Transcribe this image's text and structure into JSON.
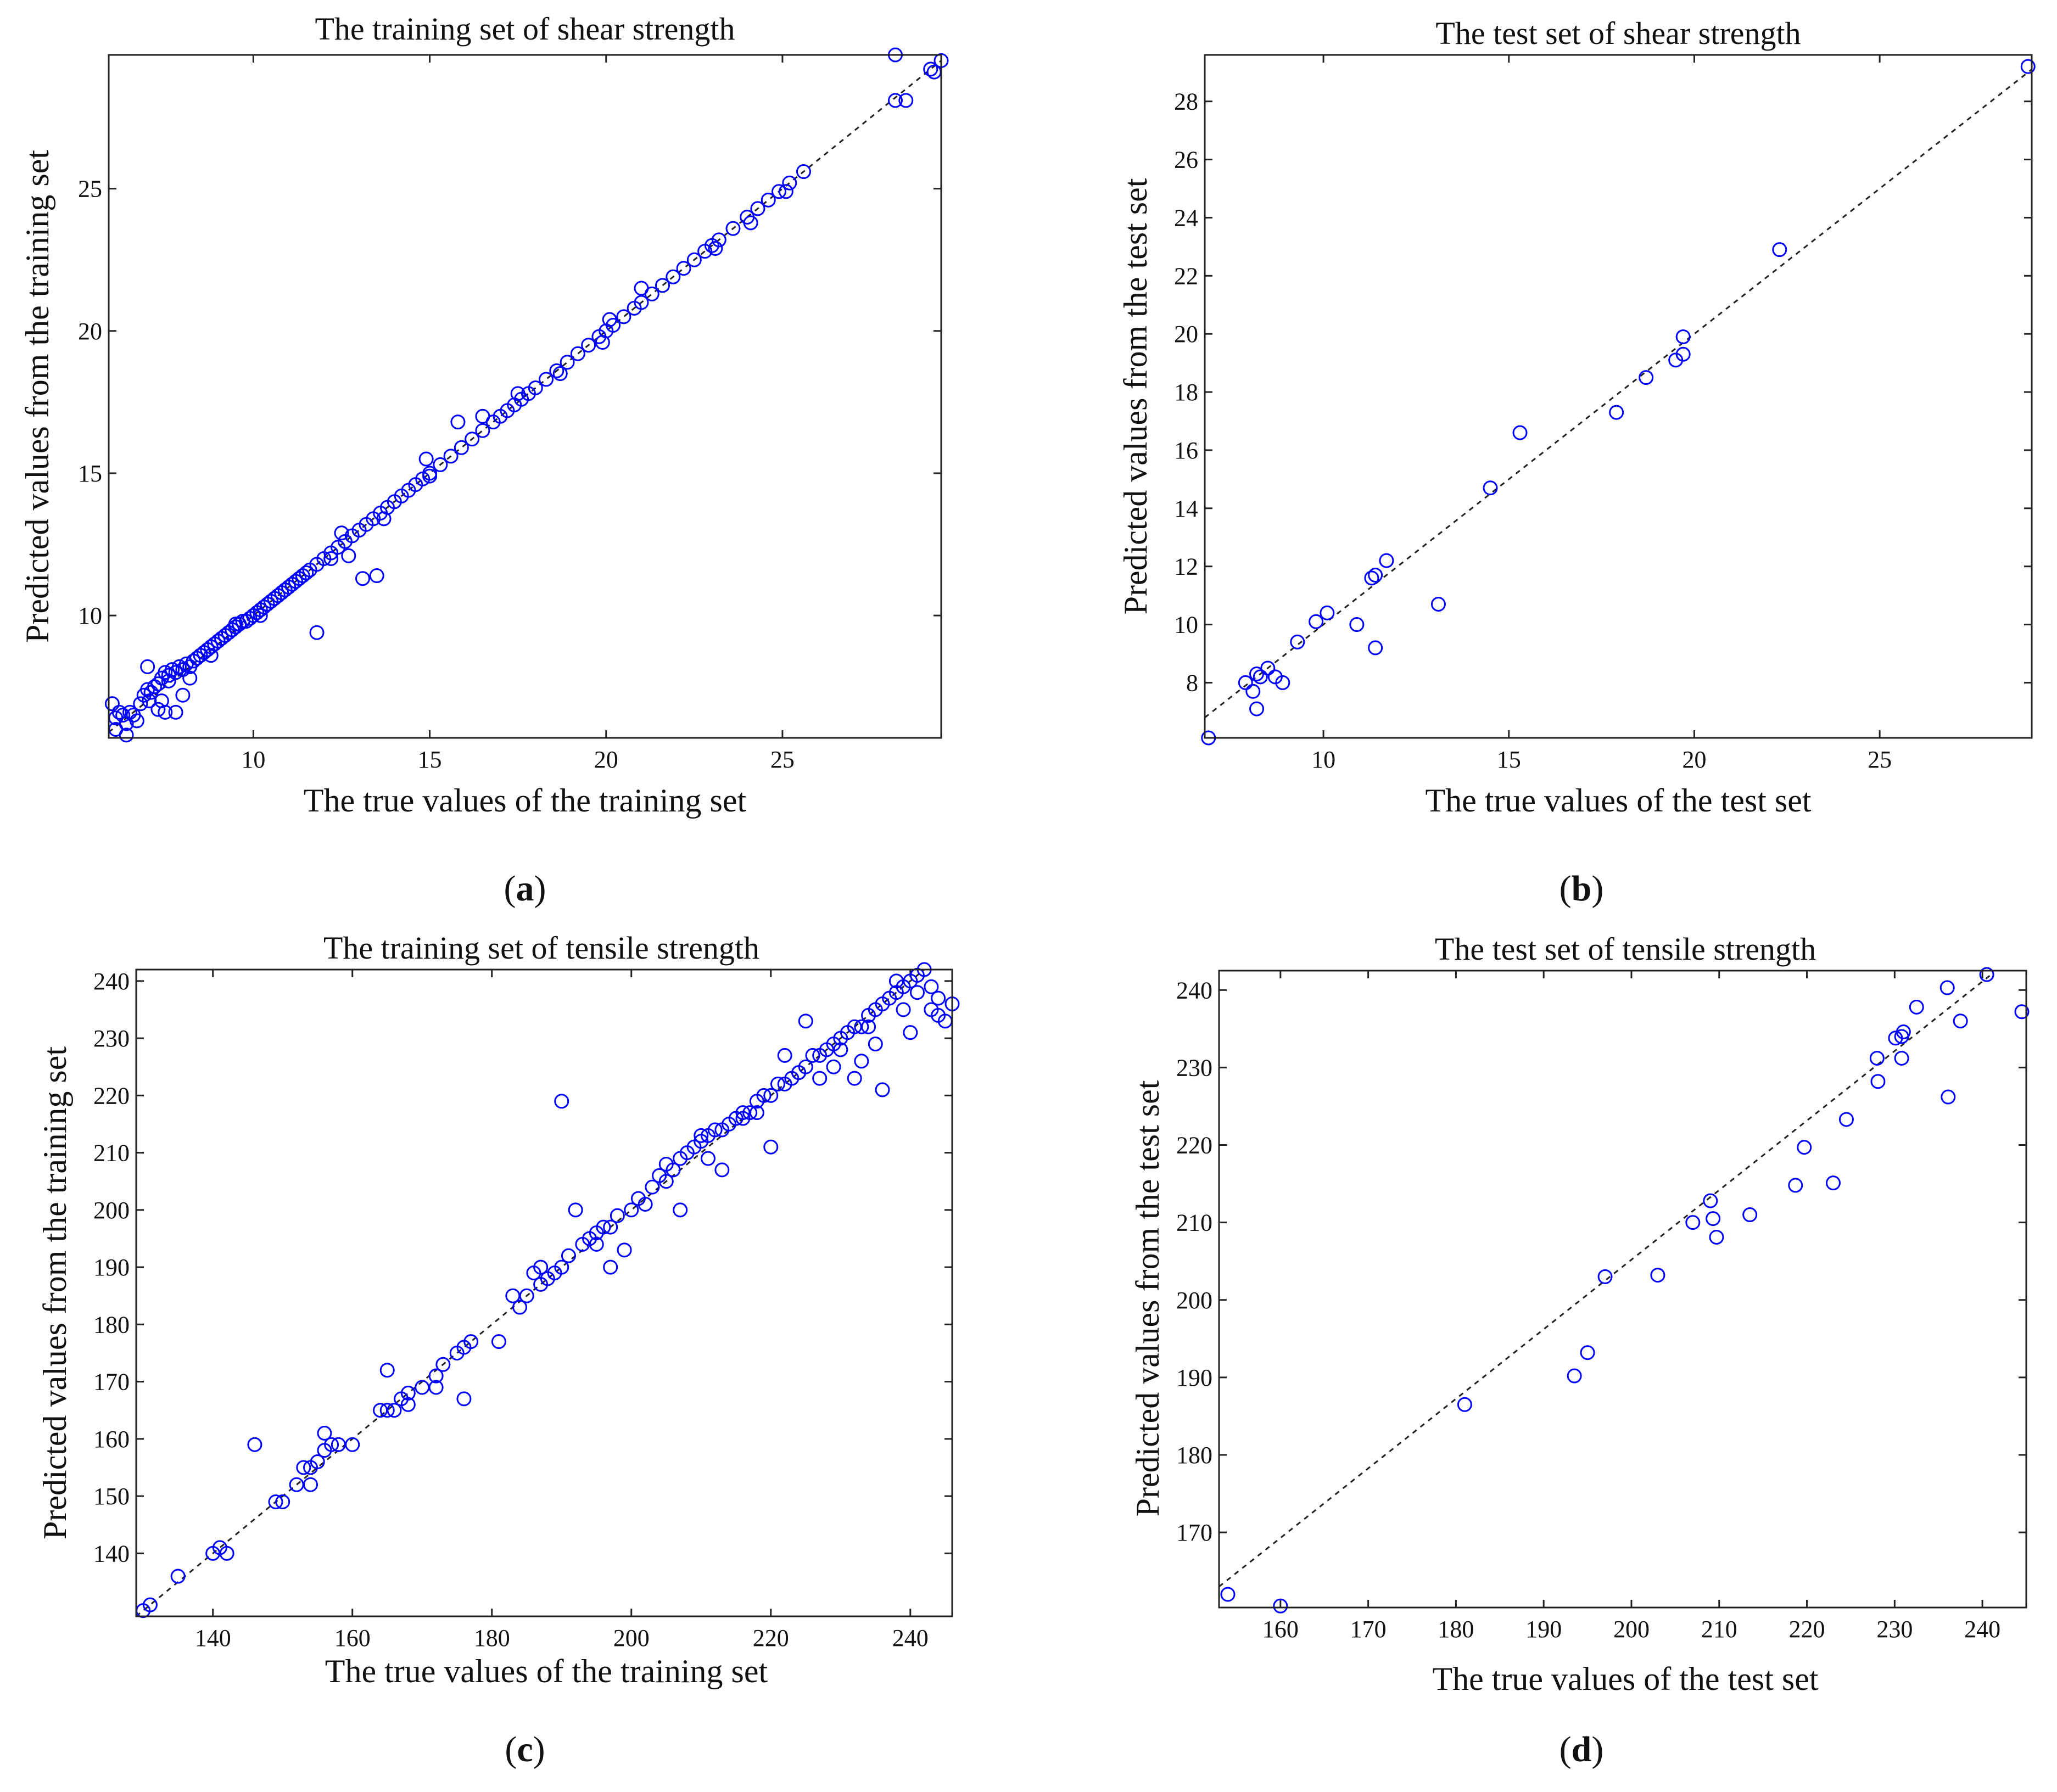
{
  "chart_data": [
    {
      "id": "a",
      "type": "scatter",
      "panel_label": "a",
      "title": "The training set of shear strength",
      "xlabel": "The true values of the training set",
      "ylabel": "Predicted values from the training set",
      "xlim": [
        5.9,
        29.5
      ],
      "ylim": [
        5.7,
        29.7
      ],
      "xticks": [
        10,
        15,
        20,
        25
      ],
      "yticks": [
        10,
        15,
        20,
        25
      ],
      "reference_line": [
        [
          5.9,
          5.9
        ],
        [
          29.5,
          29.5
        ]
      ],
      "x": [
        6.0,
        6.1,
        6.2,
        6.3,
        6.4,
        6.5,
        6.6,
        6.7,
        6.8,
        6.9,
        7.0,
        7.05,
        7.1,
        7.2,
        7.3,
        7.4,
        7.5,
        7.6,
        7.7,
        7.8,
        7.9,
        8.0,
        8.1,
        8.2,
        8.3,
        8.4,
        8.5,
        8.6,
        8.7,
        8.8,
        8.9,
        9.0,
        9.1,
        9.2,
        9.3,
        9.4,
        9.5,
        9.6,
        9.7,
        9.8,
        9.9,
        10.0,
        10.1,
        10.2,
        10.3,
        10.4,
        10.5,
        10.6,
        10.7,
        10.8,
        10.9,
        11.0,
        11.1,
        11.2,
        11.3,
        11.4,
        11.5,
        11.6,
        11.8,
        12.0,
        12.2,
        12.4,
        12.6,
        12.8,
        13.0,
        13.2,
        13.4,
        13.6,
        13.8,
        14.0,
        14.2,
        14.4,
        14.6,
        14.8,
        15.0,
        15.3,
        15.6,
        15.9,
        16.2,
        16.5,
        16.8,
        17.0,
        17.2,
        17.4,
        17.6,
        17.8,
        18.0,
        18.3,
        18.6,
        18.9,
        19.2,
        19.5,
        19.8,
        20.0,
        20.2,
        20.5,
        20.8,
        21.0,
        21.3,
        21.6,
        21.9,
        22.2,
        22.5,
        22.8,
        23.0,
        23.2,
        23.6,
        24.0,
        24.3,
        24.6,
        24.9,
        25.2,
        25.6,
        28.2,
        28.5,
        29.2,
        29.5,
        7.3,
        7.5,
        7.8,
        8.0,
        8.2,
        7.0,
        7.4,
        7.6,
        11.8,
        13.1,
        13.5,
        12.7,
        15.0,
        16.5,
        15.8,
        6.1,
        6.4,
        8.8,
        9.5,
        10.2,
        12.2,
        13.7,
        14.9,
        17.5,
        18.7,
        19.9,
        20.1,
        21.0,
        23.1,
        24.1,
        25.1,
        12.5,
        28.2,
        29.3
      ],
      "y": [
        6.9,
        6.4,
        6.6,
        6.5,
        6.2,
        6.6,
        6.5,
        6.3,
        6.9,
        7.2,
        7.4,
        7.0,
        7.3,
        7.5,
        7.6,
        7.8,
        8.0,
        7.9,
        8.1,
        8.0,
        8.2,
        8.1,
        8.3,
        8.2,
        8.4,
        8.5,
        8.6,
        8.7,
        8.8,
        8.9,
        9.0,
        9.1,
        9.2,
        9.3,
        9.4,
        9.5,
        9.6,
        9.7,
        9.8,
        9.8,
        9.9,
        10.0,
        10.1,
        10.2,
        10.3,
        10.4,
        10.5,
        10.6,
        10.7,
        10.8,
        10.9,
        11.0,
        11.1,
        11.2,
        11.3,
        11.4,
        11.5,
        11.6,
        11.8,
        12.0,
        12.2,
        12.4,
        12.6,
        12.8,
        13.0,
        13.2,
        13.4,
        13.6,
        13.8,
        14.0,
        14.2,
        14.4,
        14.6,
        14.8,
        15.0,
        15.3,
        15.6,
        15.9,
        16.2,
        16.5,
        16.8,
        17.0,
        17.2,
        17.4,
        17.6,
        17.8,
        18.0,
        18.3,
        18.6,
        18.9,
        19.2,
        19.5,
        19.8,
        20.0,
        20.2,
        20.5,
        20.8,
        21.0,
        21.3,
        21.6,
        21.9,
        22.2,
        22.5,
        22.8,
        23.0,
        23.2,
        23.6,
        24.0,
        24.3,
        24.6,
        24.9,
        25.2,
        25.6,
        29.7,
        28.1,
        29.2,
        29.5,
        6.7,
        6.6,
        6.6,
        7.2,
        7.8,
        8.2,
        7.0,
        7.7,
        9.4,
        11.3,
        11.4,
        12.1,
        14.9,
        17.0,
        16.8,
        6.0,
        5.8,
        8.6,
        9.7,
        10.0,
        12.0,
        13.4,
        15.5,
        17.8,
        18.5,
        19.6,
        20.4,
        21.5,
        22.9,
        23.8,
        24.9,
        12.9,
        28.1,
        29.1
      ]
    },
    {
      "id": "b",
      "type": "scatter",
      "panel_label": "b",
      "title": "The test set of shear strength",
      "xlabel": "The true values of the test set",
      "ylabel": "Predicted values from the test set",
      "xlim": [
        6.8,
        29.1
      ],
      "ylim": [
        6.1,
        29.6
      ],
      "xticks": [
        10,
        15,
        20,
        25
      ],
      "yticks": [
        8,
        10,
        12,
        14,
        16,
        18,
        20,
        22,
        24,
        26,
        28
      ],
      "reference_line": [
        [
          6.8,
          6.8
        ],
        [
          29.1,
          29.1
        ]
      ],
      "x": [
        6.9,
        7.9,
        8.1,
        8.2,
        8.2,
        8.3,
        8.5,
        8.7,
        8.9,
        9.3,
        9.8,
        10.1,
        10.9,
        11.3,
        11.4,
        11.4,
        11.7,
        13.1,
        14.5,
        15.3,
        17.9,
        18.7,
        19.5,
        19.7,
        19.7,
        22.3,
        29.0
      ],
      "y": [
        6.1,
        8.0,
        7.7,
        8.3,
        7.1,
        8.2,
        8.5,
        8.2,
        8.0,
        9.4,
        10.1,
        10.4,
        10.0,
        11.6,
        11.7,
        9.2,
        12.2,
        10.7,
        14.7,
        16.6,
        17.3,
        18.5,
        19.1,
        19.3,
        19.9,
        22.9,
        29.2
      ]
    },
    {
      "id": "c",
      "type": "scatter",
      "panel_label": "c",
      "title": "The training set of tensile strength",
      "xlabel": "The true values of the training set",
      "ylabel": "Predicted values from the training set",
      "xlim": [
        129,
        246
      ],
      "ylim": [
        129,
        242
      ],
      "xticks": [
        140,
        160,
        180,
        200,
        220,
        240
      ],
      "yticks": [
        140,
        150,
        160,
        170,
        180,
        190,
        200,
        210,
        220,
        230,
        240
      ],
      "reference_line": [
        [
          129,
          129
        ],
        [
          242,
          242
        ]
      ],
      "x": [
        130,
        131,
        135,
        140,
        141,
        146,
        149,
        150,
        152,
        153,
        154,
        155,
        156,
        157,
        158,
        164,
        165,
        166,
        167,
        168,
        170,
        172,
        173,
        175,
        176,
        177,
        181,
        184,
        185,
        187,
        188,
        189,
        190,
        191,
        193,
        194,
        195,
        196,
        197,
        198,
        200,
        202,
        203,
        205,
        206,
        207,
        208,
        209,
        210,
        211,
        212,
        213,
        214,
        215,
        216,
        217,
        218,
        219,
        220,
        221,
        222,
        223,
        224,
        225,
        226,
        227,
        228,
        229,
        230,
        231,
        232,
        233,
        234,
        235,
        236,
        237,
        238,
        239,
        240,
        241,
        242,
        243,
        244,
        245,
        246,
        165,
        190,
        236,
        207,
        197,
        176,
        156,
        154,
        227,
        232,
        205,
        220,
        233,
        240,
        213,
        187,
        199,
        222,
        229,
        234,
        238,
        241,
        244,
        225,
        218,
        210,
        204,
        195,
        192,
        183,
        172,
        160,
        142,
        168,
        186,
        201,
        211,
        216,
        224,
        230,
        235,
        239,
        243
      ],
      "y": [
        130,
        131,
        136,
        140,
        141,
        159,
        149,
        149,
        152,
        155,
        155,
        156,
        158,
        159,
        159,
        165,
        165,
        165,
        167,
        168,
        169,
        171,
        173,
        175,
        176,
        177,
        177,
        183,
        185,
        187,
        188,
        189,
        190,
        192,
        194,
        195,
        196,
        197,
        197,
        199,
        200,
        201,
        204,
        205,
        207,
        209,
        210,
        211,
        212,
        213,
        214,
        214,
        215,
        216,
        217,
        217,
        219,
        220,
        220,
        222,
        222,
        223,
        224,
        225,
        227,
        227,
        228,
        229,
        230,
        231,
        232,
        232,
        234,
        235,
        236,
        237,
        238,
        239,
        240,
        241,
        242,
        235,
        234,
        233,
        236,
        172,
        219,
        221,
        200,
        190,
        167,
        161,
        152,
        223,
        223,
        208,
        211,
        226,
        231,
        207,
        190,
        193,
        227,
        225,
        232,
        240,
        238,
        237,
        233,
        217,
        213,
        206,
        194,
        200,
        185,
        169,
        159,
        140,
        166,
        189,
        202,
        209,
        216,
        224,
        228,
        229,
        235,
        239
      ]
    },
    {
      "id": "d",
      "type": "scatter",
      "panel_label": "d",
      "title": "The test set of tensile strength",
      "xlabel": "The true values of the test set",
      "ylabel": "Predicted values from the test set",
      "xlim": [
        153,
        245
      ],
      "ylim": [
        160.3,
        242.5
      ],
      "xticks": [
        160,
        170,
        180,
        190,
        200,
        210,
        220,
        230,
        240
      ],
      "yticks": [
        170,
        180,
        190,
        200,
        210,
        220,
        230,
        240
      ],
      "reference_line": [
        [
          153,
          163
        ],
        [
          241,
          242
        ]
      ],
      "x": [
        154,
        160,
        181,
        193.5,
        195,
        197,
        203,
        207,
        209,
        209.3,
        209.7,
        213.5,
        218.7,
        219.7,
        223,
        224.5,
        228,
        228.1,
        230.1,
        230.8,
        230.8,
        231,
        232.5,
        236,
        236.1,
        237.5,
        240.5,
        244.5
      ],
      "y": [
        162,
        160.5,
        186.5,
        190.2,
        193.2,
        203,
        203.2,
        210,
        212.8,
        210.5,
        208.1,
        211,
        214.8,
        219.7,
        215.1,
        223.3,
        231.2,
        228.2,
        233.8,
        231.2,
        234,
        234.6,
        237.8,
        240.3,
        226.2,
        236,
        242,
        237.2
      ]
    }
  ]
}
